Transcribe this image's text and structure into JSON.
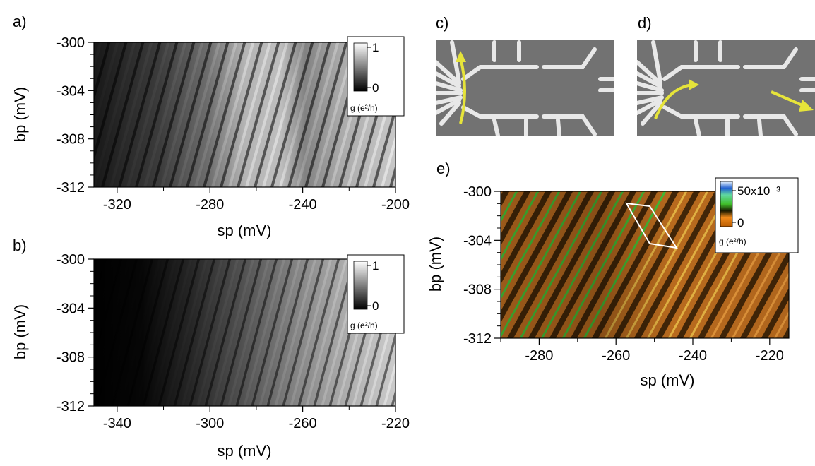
{
  "chart_data": [
    {
      "panel": "a)",
      "type": "heatmap",
      "xlabel": "sp (mV)",
      "ylabel": "bp (mV)",
      "xlim": [
        -330,
        -200
      ],
      "ylim": [
        -312,
        -300
      ],
      "xticks": [
        "-320",
        "-280",
        "-240",
        "-200"
      ],
      "yticks": [
        "-300",
        "-304",
        "-308",
        "-312"
      ],
      "colorbar": {
        "labels": [
          "1",
          "0"
        ],
        "range": [
          0,
          1
        ],
        "unit": "g (e²/h)",
        "colormap": "grayscale"
      }
    },
    {
      "panel": "b)",
      "type": "heatmap",
      "xlabel": "sp (mV)",
      "ylabel": "bp (mV)",
      "xlim": [
        -350,
        -220
      ],
      "ylim": [
        -312,
        -300
      ],
      "xticks": [
        "-340",
        "-300",
        "-260",
        "-220"
      ],
      "yticks": [
        "-300",
        "-304",
        "-308",
        "-312"
      ],
      "colorbar": {
        "labels": [
          "1",
          "0"
        ],
        "range": [
          0,
          1
        ],
        "unit": "g (e²/h)",
        "colormap": "grayscale"
      }
    },
    {
      "panel": "e)",
      "type": "heatmap",
      "xlabel": "sp (mV)",
      "ylabel": "bp (mV)",
      "xlim": [
        -290,
        -215
      ],
      "ylim": [
        -312,
        -300
      ],
      "xticks": [
        "-280",
        "-260",
        "-240",
        "-220"
      ],
      "yticks": [
        "-300",
        "-304",
        "-308",
        "-312"
      ],
      "colorbar": {
        "labels": [
          "50x10⁻³",
          "0"
        ],
        "range": [
          0,
          0.06
        ],
        "unit": "g (e²/h)",
        "colormap": "orange-black-green-blue"
      }
    }
  ],
  "images": [
    {
      "panel": "c)",
      "type": "device-micrograph"
    },
    {
      "panel": "d)",
      "type": "device-micrograph"
    }
  ],
  "colors": {
    "arrow": "#e6e43a",
    "gates": "#e6e6e6",
    "substrate": "#727272"
  }
}
